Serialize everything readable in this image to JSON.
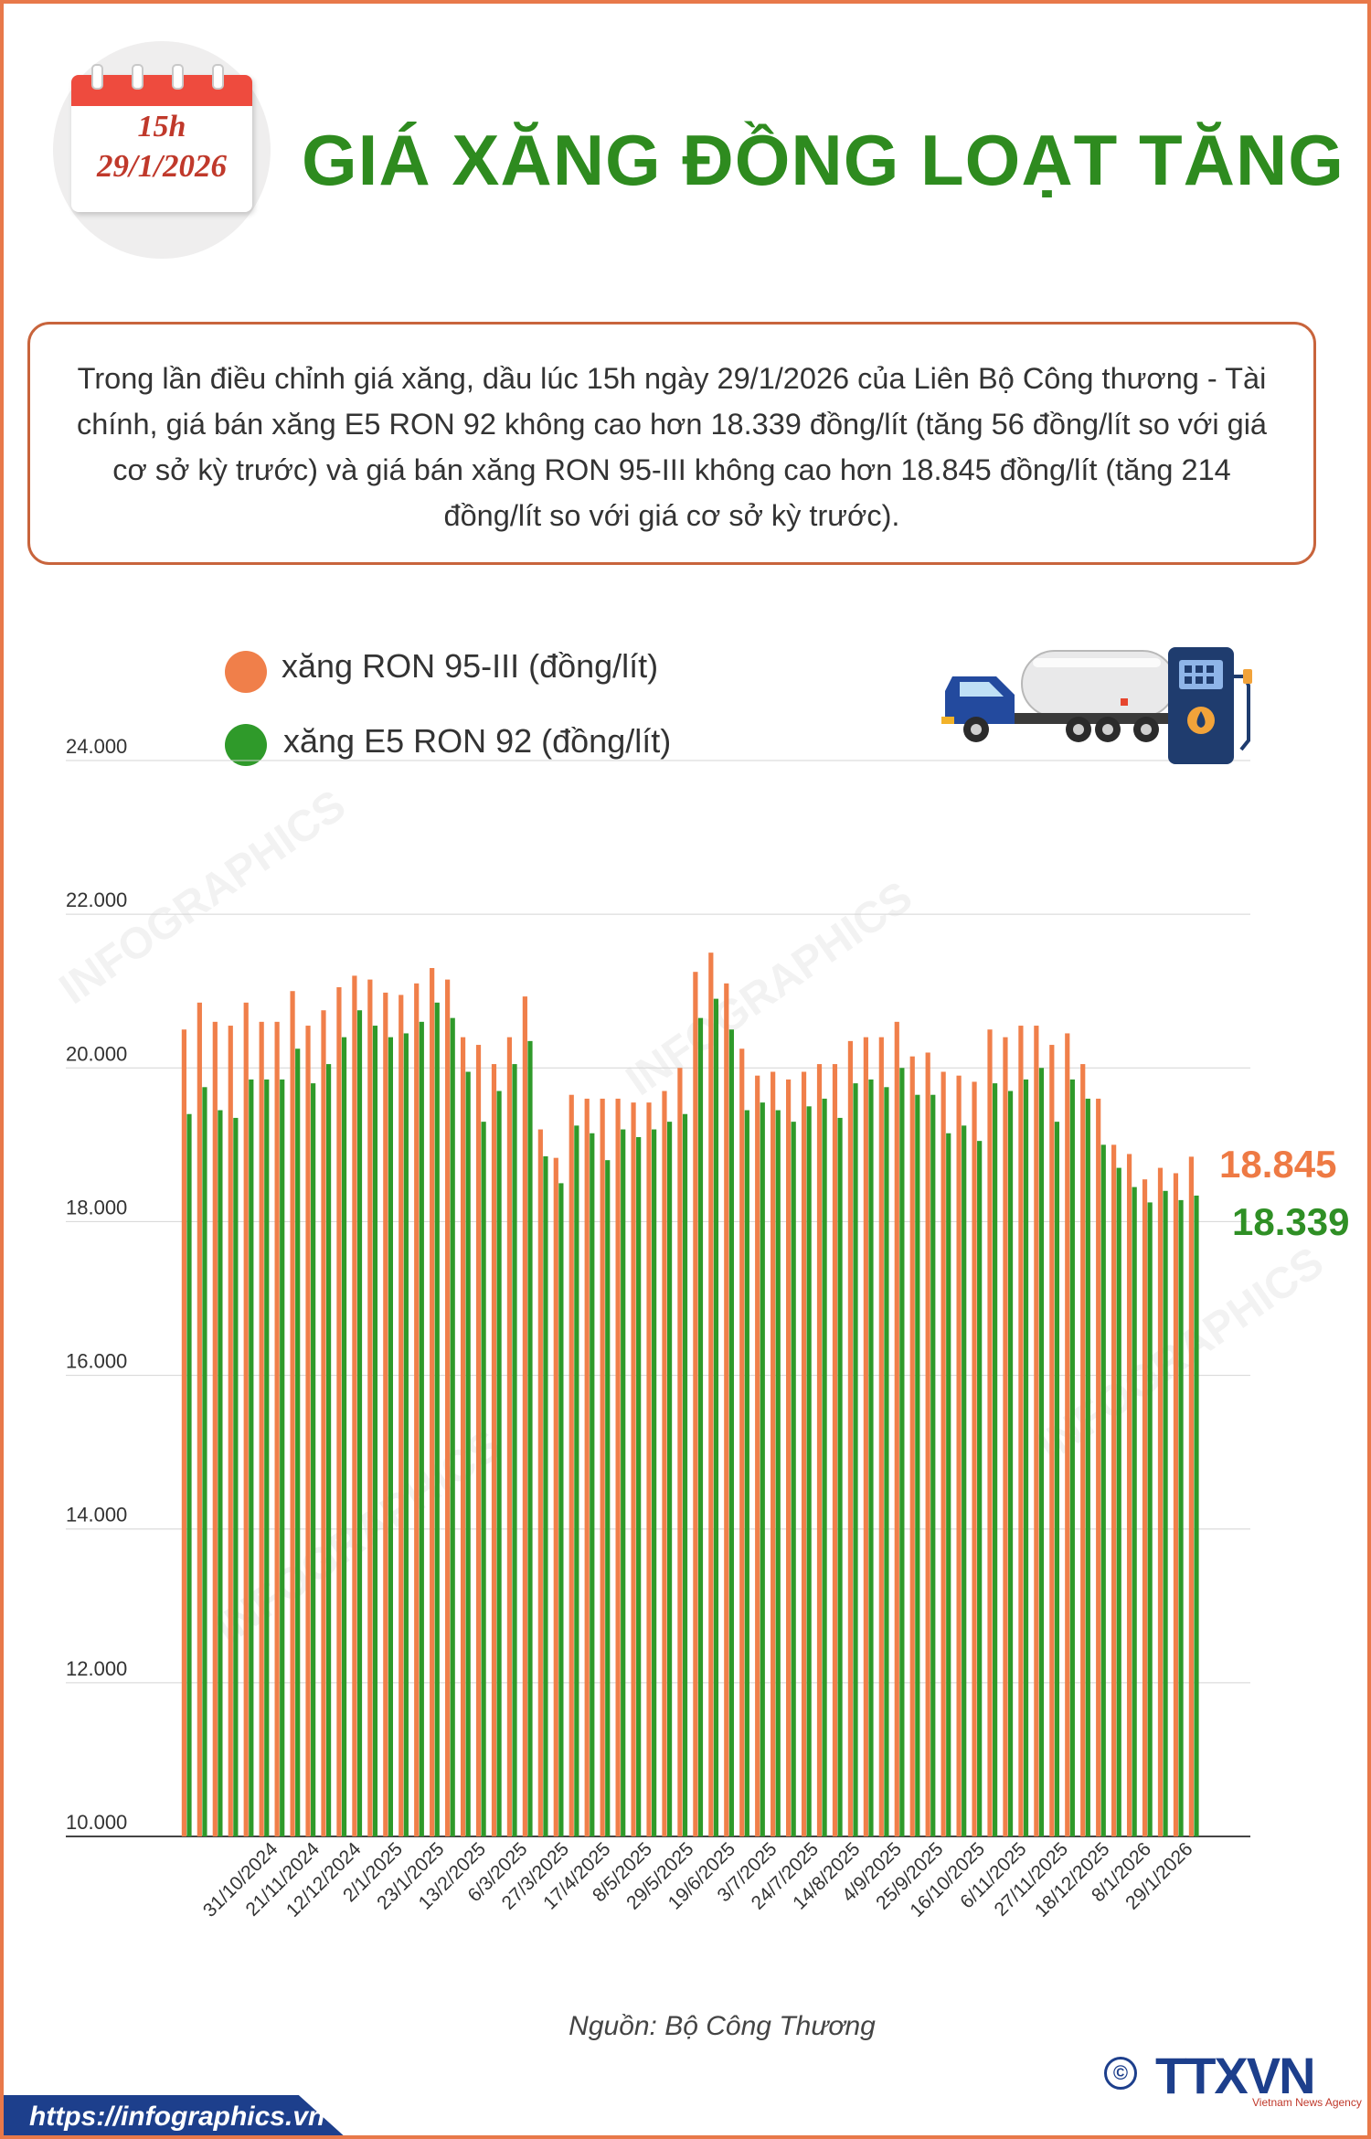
{
  "header": {
    "calendar_time": "15h",
    "calendar_date": "29/1/2026",
    "title": "GIÁ XĂNG ĐỒNG LOẠT TĂNG"
  },
  "intro_text": "Trong lần điều chỉnh giá xăng, dầu lúc 15h ngày 29/1/2026 của Liên Bộ Công thương - Tài chính, giá bán xăng E5 RON 92 không cao hơn 18.339 đồng/lít (tăng 56 đồng/lít so với giá cơ sở kỳ trước) và giá bán xăng RON 95-III không cao hơn 18.845 đồng/lít (tăng 214 đồng/lít so với giá cơ sở kỳ trước).",
  "callouts": {
    "ron95_latest": "18.845",
    "e5_latest": "18.339"
  },
  "colors": {
    "ron95": "#f07f4a",
    "e5": "#2f9a2a",
    "title": "#2e8b1f",
    "brand_blue": "#1d3f8c"
  },
  "icons": [
    "calendar-icon",
    "tanker-truck-icon",
    "fuel-pump-icon"
  ],
  "chart_data": {
    "type": "bar",
    "title": "",
    "xlabel": "",
    "ylabel": "",
    "ylim": [
      10000,
      24000
    ],
    "yticks": [
      10000,
      12000,
      14000,
      16000,
      18000,
      20000,
      22000,
      24000
    ],
    "ytick_labels": [
      "10.000",
      "12.000",
      "14.000",
      "16.000",
      "18.000",
      "20.000",
      "22.000",
      "24.000"
    ],
    "grid": true,
    "legend": "top-left",
    "tick_labels": [
      "31/10/2024",
      "21/11/2024",
      "12/12/2024",
      "2/1/2025",
      "23/1/2025",
      "13/2/2025",
      "6/3/2025",
      "27/3/2025",
      "17/4/2025",
      "8/5/2025",
      "29/5/2025",
      "19/6/2025",
      "3/7/2025",
      "24/7/2025",
      "14/8/2025",
      "4/9/2025",
      "25/9/2025",
      "16/10/2025",
      "6/11/2025",
      "27/11/2025",
      "18/12/2025",
      "8/1/2026",
      "29/1/2026"
    ],
    "series": [
      {
        "name": "xăng RON 95-III (đồng/lít)",
        "color": "#f07f4a",
        "values": [
          20500,
          20850,
          20600,
          20550,
          20850,
          20600,
          20600,
          21000,
          20550,
          20750,
          21050,
          21200,
          21150,
          20980,
          20950,
          21100,
          21300,
          21150,
          20400,
          20300,
          20050,
          20400,
          20930,
          19200,
          18830,
          19650,
          19600,
          19600,
          19600,
          19550,
          19550,
          19700,
          20000,
          21250,
          21500,
          21100,
          20250,
          19900,
          19950,
          19850,
          19950,
          20050,
          20050,
          20350,
          20400,
          20400,
          20600,
          20150,
          20200,
          19950,
          19900,
          19820,
          20500,
          20400,
          20550,
          20550,
          20300,
          20450,
          20050,
          19600,
          19000,
          18880,
          18550,
          18700,
          18630,
          18845
        ]
      },
      {
        "name": "xăng E5 RON 92 (đồng/lít)",
        "color": "#2f9a2a",
        "values": [
          19400,
          19750,
          19450,
          19350,
          19850,
          19850,
          19850,
          20250,
          19800,
          20050,
          20400,
          20750,
          20550,
          20400,
          20450,
          20600,
          20850,
          20650,
          19950,
          19300,
          19700,
          20050,
          20350,
          18850,
          18500,
          19250,
          19150,
          18800,
          19200,
          19100,
          19200,
          19300,
          19400,
          20650,
          20900,
          20500,
          19450,
          19550,
          19450,
          19300,
          19500,
          19600,
          19350,
          19800,
          19850,
          19750,
          20000,
          19650,
          19650,
          19150,
          19250,
          19050,
          19800,
          19700,
          19850,
          20000,
          19300,
          19850,
          19600,
          19000,
          18700,
          18450,
          18250,
          18400,
          18280,
          18339
        ]
      }
    ]
  },
  "source": "Nguồn: Bộ Công Thương",
  "footer": {
    "url": "https://infographics.vn",
    "copyright_symbol": "©",
    "logo": "TTXVN",
    "logo_sub": "Vietnam News Agency"
  }
}
